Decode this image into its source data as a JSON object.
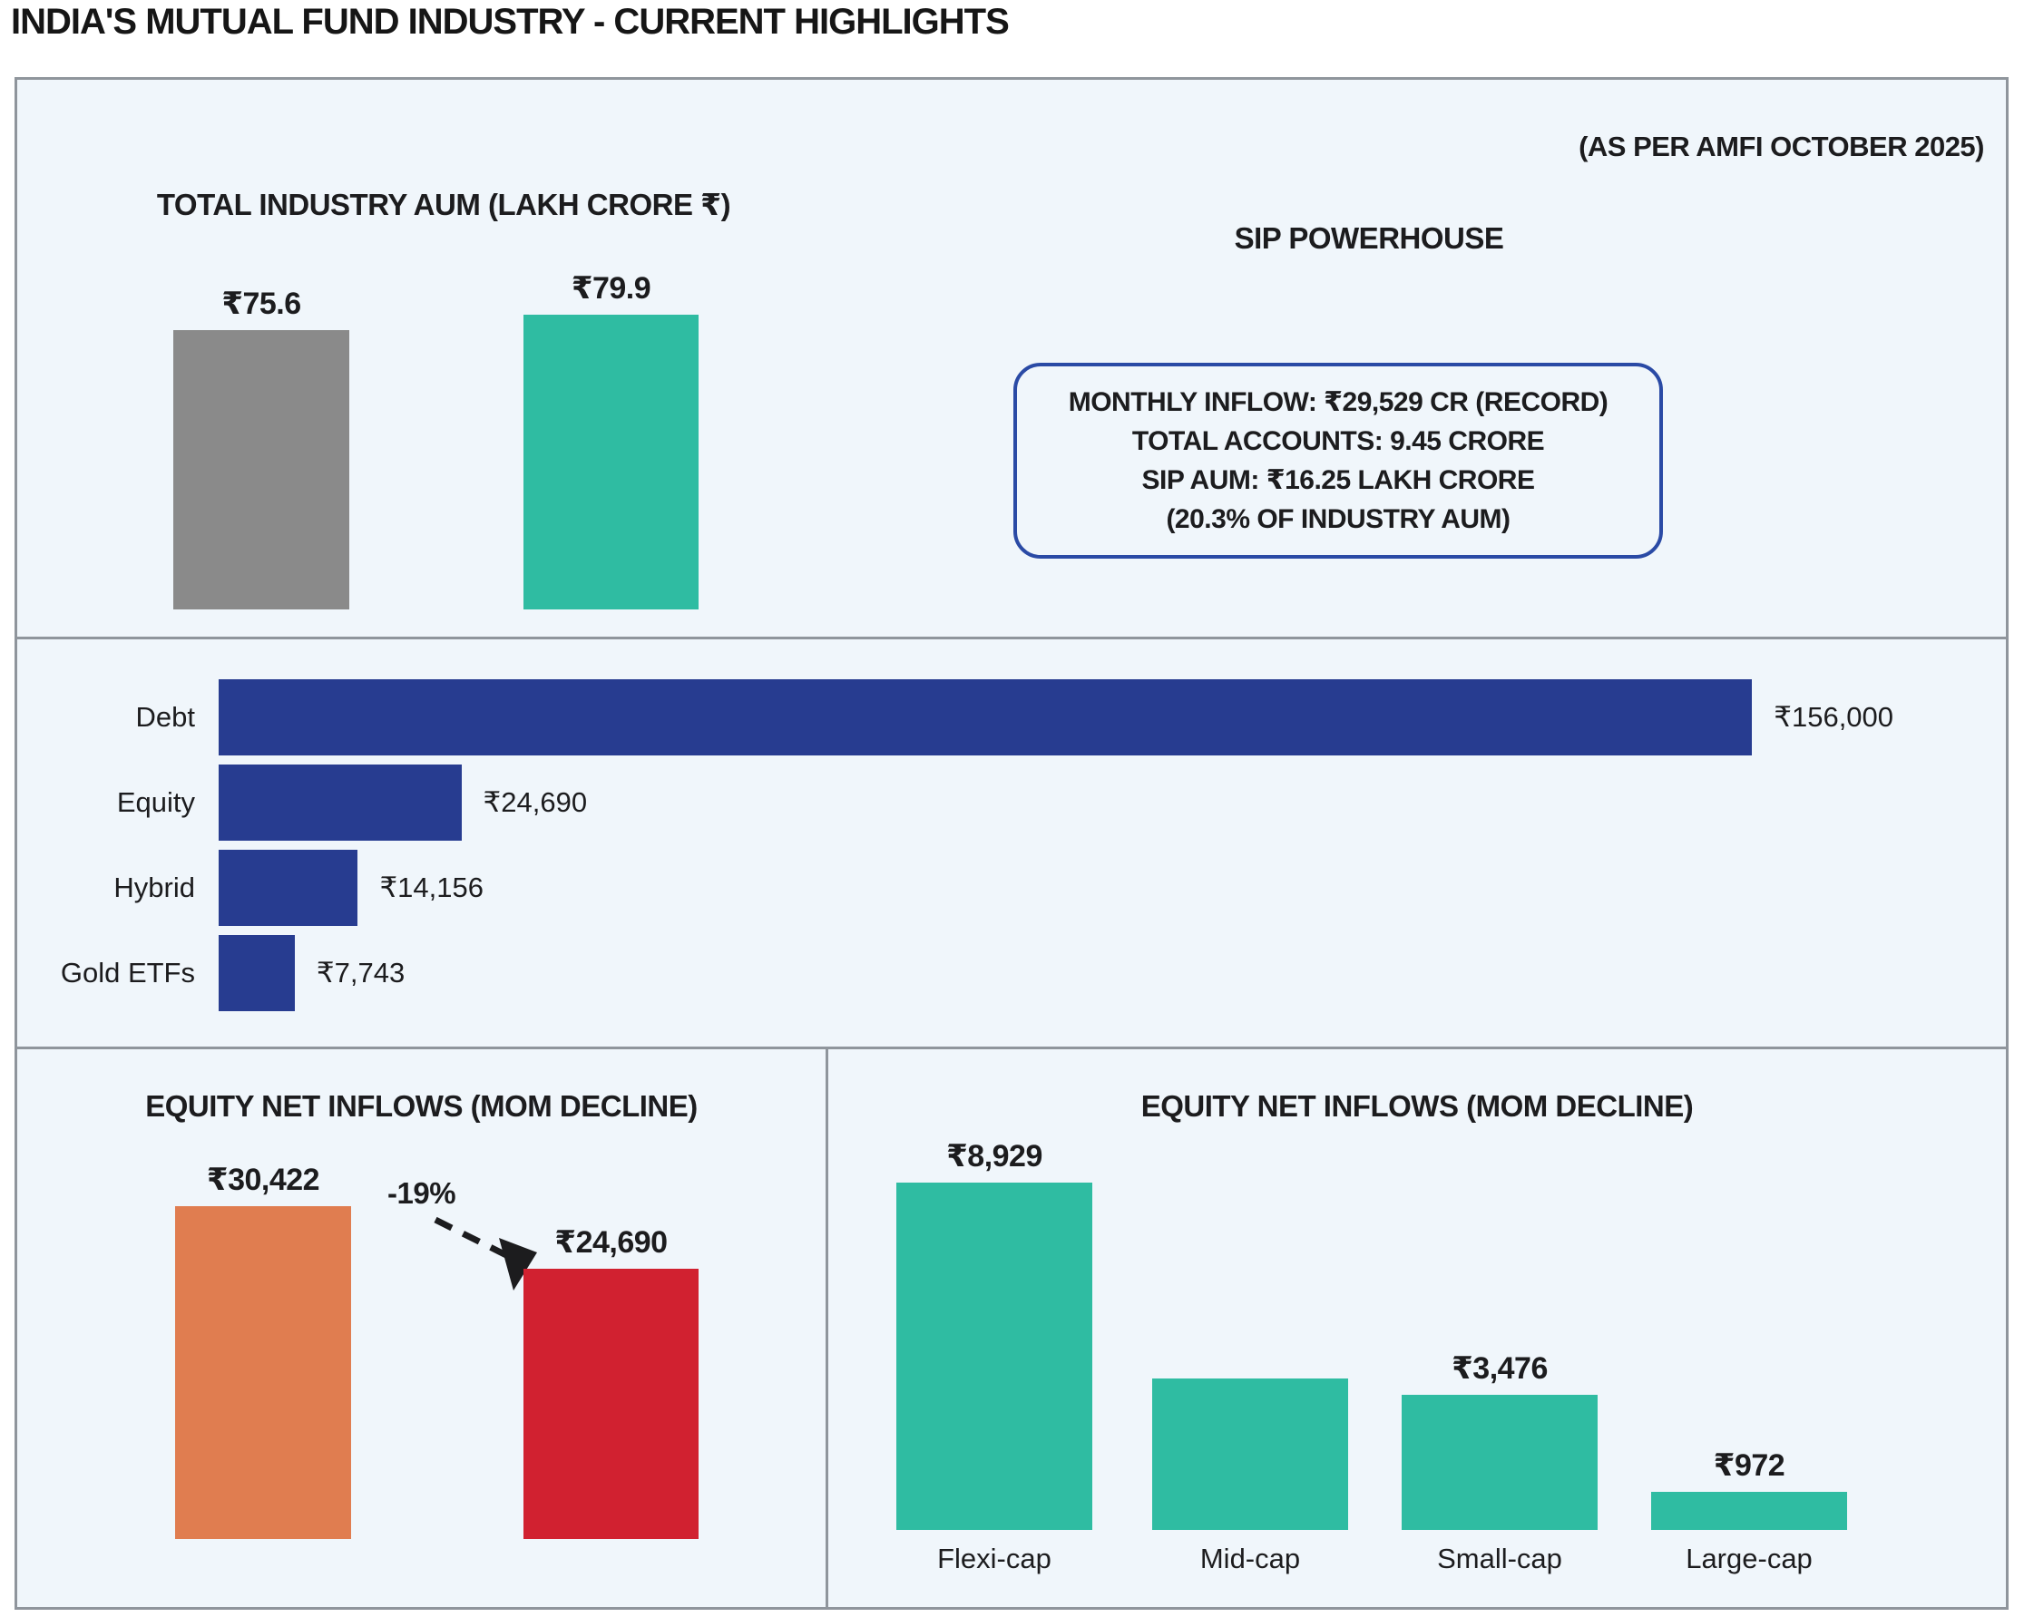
{
  "page_title": "INDIA'S MUTUAL FUND INDUSTRY - CURRENT HIGHLIGHTS",
  "source_note": "(AS PER AMFI OCTOBER 2025)",
  "colors": {
    "teal": "#2FBCA2",
    "bar_gray": "#8A8A8A",
    "navy": "#273C90",
    "orange": "#E07D50",
    "red": "#D12130",
    "panel_bg": "#F0F6FB",
    "line": "#8F959C",
    "box_border": "#2A4AA5",
    "ink": "#1C1C1E"
  },
  "sip": {
    "title": "SIP POWERHOUSE",
    "lines": [
      "MONTHLY INFLOW: ₹29,529 CR (RECORD)",
      "TOTAL ACCOUNTS: 9.45 CRORE",
      "SIP AUM: ₹16.25 LAKH CRORE",
      "(20.3% OF INDUSTRY AUM)"
    ]
  },
  "chart_data": [
    {
      "id": "industry_aum",
      "type": "bar",
      "title": "TOTAL INDUSTRY AUM (LAKH CRORE ₹)",
      "values": [
        75.6,
        79.9
      ],
      "value_labels": [
        "₹75.6",
        "₹79.9"
      ],
      "bar_colors": [
        "#8A8A8A",
        "#2FBCA2"
      ],
      "ylim": [
        0,
        79.9
      ],
      "grid": false
    },
    {
      "id": "category_flows",
      "type": "bar",
      "orientation": "horizontal",
      "categories": [
        "Debt",
        "Equity",
        "Hybrid",
        "Gold ETFs"
      ],
      "values": [
        156000,
        24690,
        14156,
        7743
      ],
      "value_labels": [
        "₹156,000",
        "₹24,690",
        "₹14,156",
        "₹7,743"
      ],
      "bar_color": "#273C90",
      "xlim": [
        0,
        156000
      ],
      "grid": false
    },
    {
      "id": "equity_mom",
      "type": "bar",
      "title": "EQUITY NET INFLOWS (MOM DECLINE)",
      "values": [
        30422,
        24690
      ],
      "value_labels": [
        "₹30,422",
        "₹24,690"
      ],
      "bar_colors": [
        "#E07D50",
        "#D12130"
      ],
      "annotation": "-19%",
      "ylim": [
        0,
        30422
      ],
      "grid": false
    },
    {
      "id": "equity_categories",
      "type": "bar",
      "title": "EQUITY NET INFLOWS (MOM DECLINE)",
      "categories": [
        "Flexi-cap",
        "Mid-cap",
        "Small-cap",
        "Large-cap"
      ],
      "values": [
        8929,
        3900,
        3476,
        972
      ],
      "value_labels": [
        "₹8,929",
        "",
        "₹3,476",
        "₹972"
      ],
      "bar_color": "#2FBCA2",
      "ylim": [
        0,
        8929
      ],
      "grid": false
    }
  ]
}
